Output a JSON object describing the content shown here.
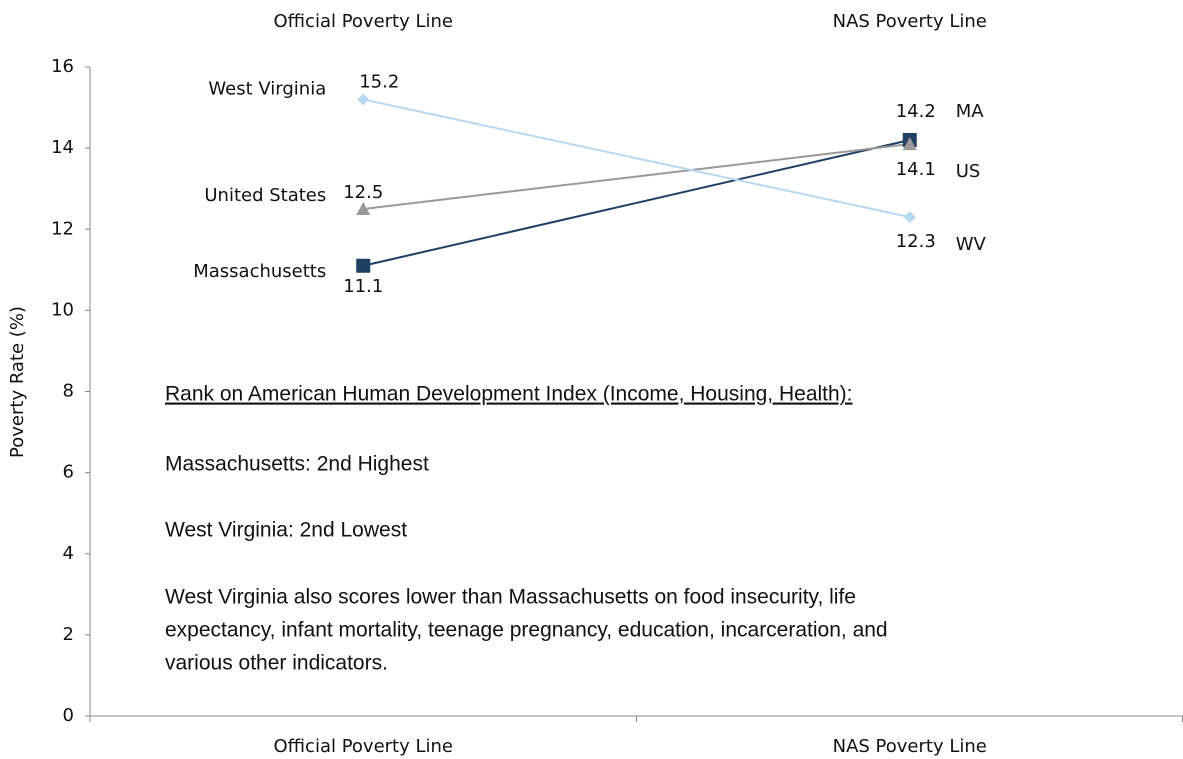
{
  "chart_data": {
    "type": "line",
    "categories": [
      "Official Poverty Line",
      "NAS Poverty Line"
    ],
    "ylabel": "Poverty Rate (%)",
    "ylim": [
      0,
      16
    ],
    "yticks": [
      0,
      2,
      4,
      6,
      8,
      10,
      12,
      14,
      16
    ],
    "series": [
      {
        "name": "Massachusetts",
        "abbr": "MA",
        "color": "#1f3f63",
        "marker": "square",
        "values": [
          11.1,
          14.2
        ]
      },
      {
        "name": "United States",
        "abbr": "US",
        "color": "#999999",
        "marker": "triangle",
        "values": [
          12.5,
          14.1
        ]
      },
      {
        "name": "West Virginia",
        "abbr": "WV",
        "color": "#b8d8f0",
        "marker": "diamond",
        "values": [
          15.2,
          12.3
        ]
      }
    ],
    "annotations": {
      "heading": "Rank on American Human Development Index (Income, Housing, Health):",
      "items": [
        "Massachusetts: 2nd Highest",
        "West Virginia: 2nd Lowest"
      ],
      "paragraph": [
        "West Virginia also scores lower than Massachusetts on food insecurity, life",
        "expectancy, infant mortality, teenage pregnancy, education, incarceration, and",
        "various other indicators."
      ]
    }
  }
}
